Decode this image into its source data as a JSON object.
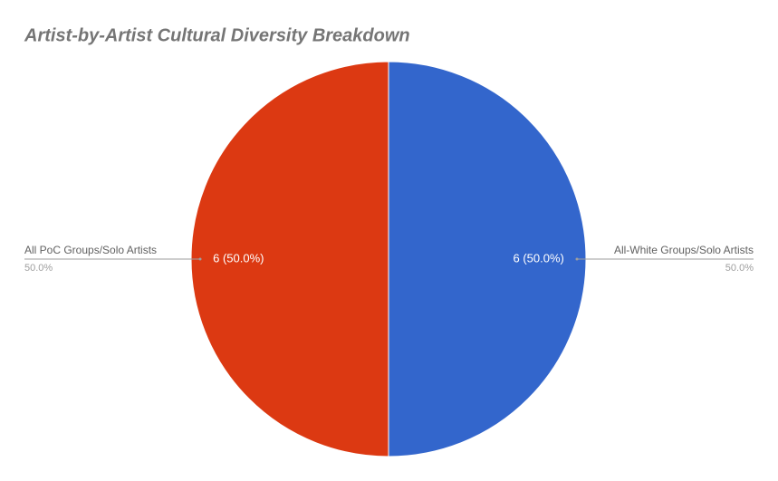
{
  "chart_data": {
    "type": "pie",
    "title": "Artist-by-Artist Cultural Diversity Breakdown",
    "categories": [
      "All-White Groups/Solo Artists",
      "All PoC Groups/Solo Artists"
    ],
    "values": [
      6,
      6
    ],
    "value_labels": [
      "6 (50.0%)",
      "6 (50.0%)"
    ],
    "percent_labels": [
      "50.0%",
      "50.0%"
    ],
    "colors": [
      "#3366cc",
      "#dc3912"
    ]
  }
}
